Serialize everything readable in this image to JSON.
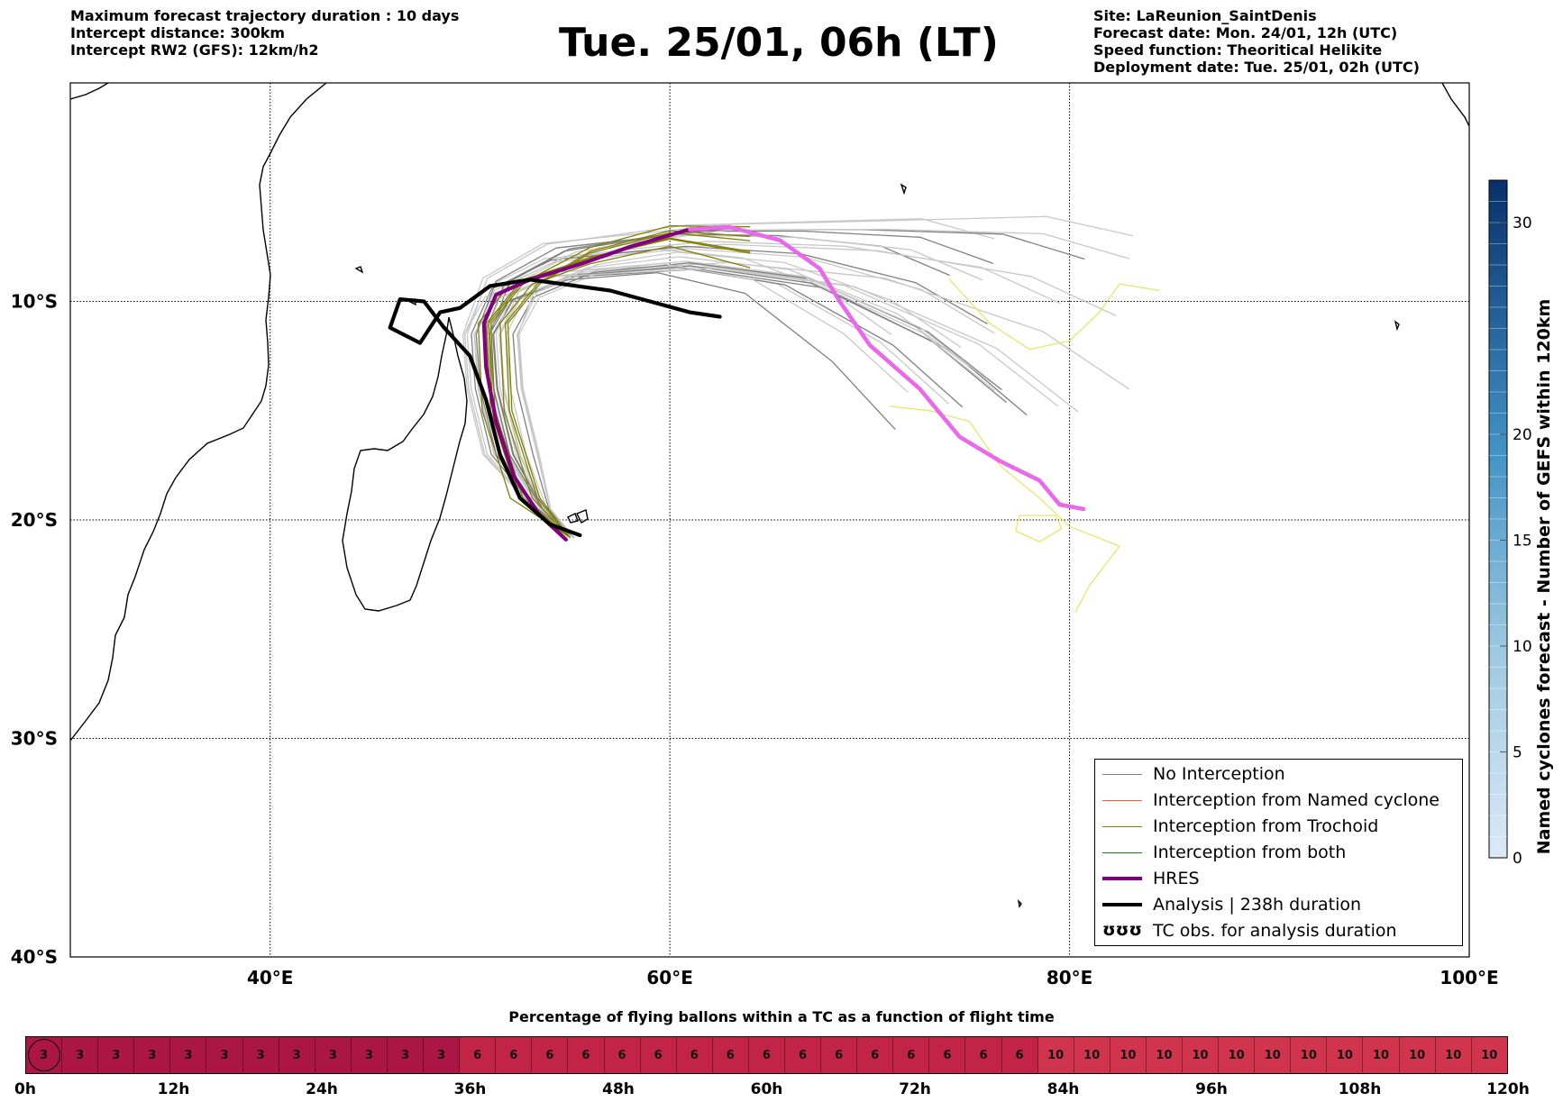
{
  "header": {
    "left_lines": [
      "Maximum forecast trajectory duration : 10 days",
      "Intercept distance: 300km",
      "Intercept RW2 (GFS):  12km/h2"
    ],
    "title": "Tue. 25/01, 06h (LT)",
    "right_lines": [
      "Site: LaReunion_SaintDenis",
      "Forecast date: Mon. 24/01, 12h (UTC)",
      "Speed function: Theoritical Helikite",
      "Deployment date: Tue. 25/01, 02h (UTC)"
    ]
  },
  "chart_data": [
    {
      "type": "line",
      "lon_range": [
        30,
        100
      ],
      "lat_range": [
        -40,
        0
      ],
      "x_ticks": [
        40,
        60,
        80,
        100
      ],
      "x_tick_labels": [
        "40°E",
        "60°E",
        "80°E",
        "100°E"
      ],
      "y_ticks": [
        -10,
        -20,
        -30,
        -40
      ],
      "y_tick_labels": [
        "10°S",
        "20°S",
        "30°S",
        "40°S"
      ],
      "grid": true,
      "legend_placement": "lower-right",
      "series": [
        {
          "name": "No Interception",
          "color": "#7f7f7f"
        },
        {
          "name": "Interception from Named cyclone",
          "color": "#ff5b1f"
        },
        {
          "name": "Interception from Trochoid",
          "color": "#808000"
        },
        {
          "name": "Interception from both",
          "color": "#108010"
        },
        {
          "name": "HRES",
          "color": "#800080",
          "points": [
            [
              54.8,
              -20.9
            ],
            [
              53.5,
              -19.8
            ],
            [
              52.2,
              -18.0
            ],
            [
              51.3,
              -15.5
            ],
            [
              50.8,
              -13.0
            ],
            [
              50.7,
              -11.0
            ],
            [
              51.3,
              -9.7
            ],
            [
              53.0,
              -9.0
            ],
            [
              55.5,
              -8.3
            ],
            [
              58.0,
              -7.5
            ],
            [
              61.0,
              -6.7
            ],
            [
              63.0,
              -6.6
            ],
            [
              65.5,
              -7.2
            ],
            [
              67.5,
              -8.5
            ],
            [
              68.5,
              -10.0
            ],
            [
              70.0,
              -12.0
            ],
            [
              72.5,
              -14.0
            ],
            [
              74.5,
              -16.2
            ],
            [
              76.5,
              -17.3
            ],
            [
              78.5,
              -18.2
            ],
            [
              79.5,
              -19.3
            ],
            [
              80.7,
              -19.5
            ]
          ]
        },
        {
          "name": "Analysis | 238h duration",
          "color": "#000000",
          "points": [
            [
              55.5,
              -20.7
            ],
            [
              54.0,
              -20.2
            ],
            [
              52.5,
              -19.0
            ],
            [
              51.5,
              -17.0
            ],
            [
              50.8,
              -14.5
            ],
            [
              50.0,
              -12.5
            ],
            [
              48.7,
              -11.2
            ],
            [
              47.7,
              -10.0
            ],
            [
              46.5,
              -9.9
            ],
            [
              46.0,
              -11.2
            ],
            [
              47.5,
              -11.9
            ],
            [
              48.5,
              -10.5
            ],
            [
              49.5,
              -10.3
            ],
            [
              51.0,
              -9.3
            ],
            [
              53.0,
              -9.0
            ],
            [
              57.0,
              -9.5
            ],
            [
              61.0,
              -10.5
            ],
            [
              62.5,
              -10.7
            ]
          ]
        },
        {
          "name": "TC obs. for analysis duration",
          "glyph": "ʊʊʊ"
        }
      ]
    },
    {
      "type": "heatmap",
      "title": "Named cyclones forecast - Number of GEFS within 120km",
      "range": [
        0,
        32
      ],
      "ticks": [
        0,
        5,
        10,
        15,
        20,
        30
      ],
      "colors": [
        "#dbe9f6",
        "#08306b"
      ]
    },
    {
      "type": "heatmap",
      "title": "Percentage of flying ballons within a TC as a function of flight time",
      "cells": [
        3,
        3,
        3,
        3,
        3,
        3,
        3,
        3,
        3,
        3,
        3,
        3,
        6,
        6,
        6,
        6,
        6,
        6,
        6,
        6,
        6,
        6,
        6,
        6,
        6,
        6,
        6,
        6,
        10,
        10,
        10,
        10,
        10,
        10,
        10,
        10,
        10,
        10,
        10,
        10,
        10
      ],
      "time_labels": [
        "0h",
        "12h",
        "24h",
        "36h",
        "48h",
        "60h",
        "72h",
        "84h",
        "96h",
        "108h",
        "120h"
      ],
      "time_values": [
        0,
        12,
        24,
        36,
        48,
        60,
        72,
        84,
        96,
        108,
        120
      ],
      "time_range": [
        0,
        120
      ],
      "colors": {
        "3": "#ac1646",
        "6": "#c22447",
        "10": "#d1354e"
      }
    }
  ]
}
